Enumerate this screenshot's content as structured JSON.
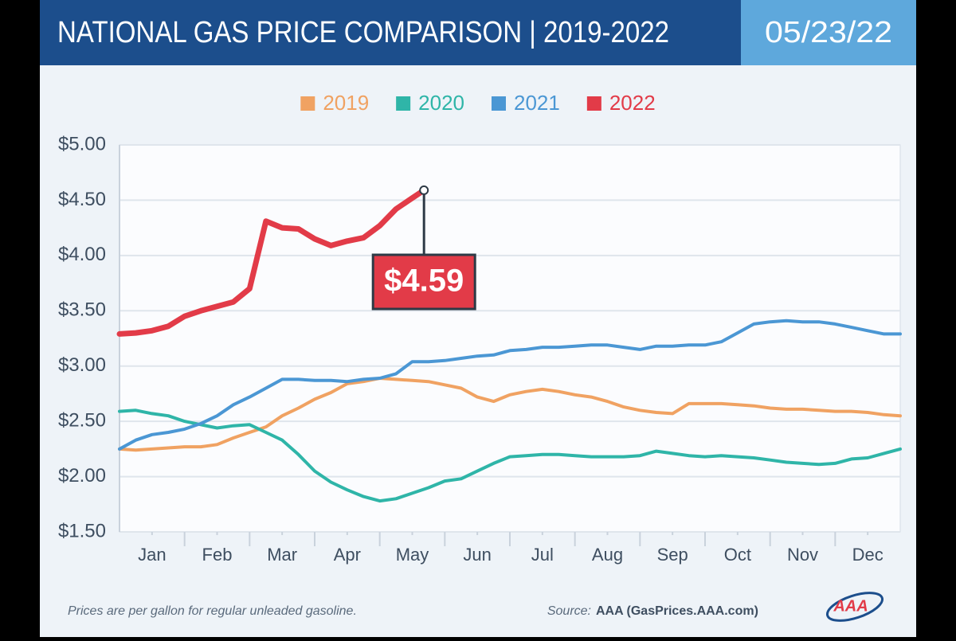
{
  "chart_data": {
    "type": "line",
    "title": "NATIONAL GAS PRICE COMPARISON | 2019-2022",
    "date": "05/23/22",
    "note": "Prices are per gallon for regular unleaded gasoline.",
    "source_label": "Source:",
    "source": "AAA (GasPrices.AAA.com)",
    "logo": "AAA",
    "xlim": [
      0,
      12
    ],
    "xticks": [
      {
        "value": 0.5,
        "label": "Jan"
      },
      {
        "value": 1.5,
        "label": "Feb"
      },
      {
        "value": 2.5,
        "label": "Mar"
      },
      {
        "value": 3.5,
        "label": "Apr"
      },
      {
        "value": 4.5,
        "label": "May"
      },
      {
        "value": 5.5,
        "label": "Jun"
      },
      {
        "value": 6.5,
        "label": "Jul"
      },
      {
        "value": 7.5,
        "label": "Aug"
      },
      {
        "value": 8.5,
        "label": "Sep"
      },
      {
        "value": 9.5,
        "label": "Oct"
      },
      {
        "value": 10.5,
        "label": "Nov"
      },
      {
        "value": 11.5,
        "label": "Dec"
      }
    ],
    "ylim": [
      1.5,
      5
    ],
    "yticks": [
      {
        "value": 1.5,
        "label": "$1.50"
      },
      {
        "value": 2,
        "label": "$2.00"
      },
      {
        "value": 2.5,
        "label": "$2.50"
      },
      {
        "value": 3,
        "label": "$3.00"
      },
      {
        "value": 3.5,
        "label": "$3.50"
      },
      {
        "value": 4,
        "label": "$4.00"
      },
      {
        "value": 4.5,
        "label": "$4.50"
      },
      {
        "value": 5,
        "label": "$5.00"
      }
    ],
    "grid": true,
    "legend": "top",
    "series": [
      {
        "name": "2019",
        "color": "#f0a262",
        "x": [
          0,
          0.25,
          0.5,
          0.75,
          1,
          1.25,
          1.5,
          1.75,
          2,
          2.25,
          2.5,
          2.75,
          3,
          3.25,
          3.5,
          3.75,
          4,
          4.25,
          4.5,
          4.75,
          5,
          5.25,
          5.5,
          5.75,
          6,
          6.25,
          6.5,
          6.75,
          7,
          7.25,
          7.5,
          7.75,
          8,
          8.25,
          8.5,
          8.75,
          9,
          9.25,
          9.5,
          9.75,
          10,
          10.25,
          10.5,
          10.75,
          11,
          11.25,
          11.5,
          11.75,
          12
        ],
        "values": [
          2.25,
          2.24,
          2.25,
          2.26,
          2.27,
          2.27,
          2.29,
          2.35,
          2.4,
          2.45,
          2.55,
          2.62,
          2.7,
          2.76,
          2.84,
          2.86,
          2.89,
          2.88,
          2.87,
          2.86,
          2.83,
          2.8,
          2.72,
          2.68,
          2.74,
          2.77,
          2.79,
          2.77,
          2.74,
          2.72,
          2.68,
          2.63,
          2.6,
          2.58,
          2.57,
          2.66,
          2.66,
          2.66,
          2.65,
          2.64,
          2.62,
          2.61,
          2.61,
          2.6,
          2.59,
          2.59,
          2.58,
          2.56,
          2.55
        ]
      },
      {
        "name": "2020",
        "color": "#2fb5a8",
        "x": [
          0,
          0.25,
          0.5,
          0.75,
          1,
          1.25,
          1.5,
          1.75,
          2,
          2.25,
          2.5,
          2.75,
          3,
          3.25,
          3.5,
          3.75,
          4,
          4.25,
          4.5,
          4.75,
          5,
          5.25,
          5.5,
          5.75,
          6,
          6.25,
          6.5,
          6.75,
          7,
          7.25,
          7.5,
          7.75,
          8,
          8.25,
          8.5,
          8.75,
          9,
          9.25,
          9.5,
          9.75,
          10,
          10.25,
          10.5,
          10.75,
          11,
          11.25,
          11.5,
          11.75,
          12
        ],
        "values": [
          2.59,
          2.6,
          2.57,
          2.55,
          2.5,
          2.47,
          2.44,
          2.46,
          2.47,
          2.4,
          2.33,
          2.2,
          2.05,
          1.95,
          1.88,
          1.82,
          1.78,
          1.8,
          1.85,
          1.9,
          1.96,
          1.98,
          2.05,
          2.12,
          2.18,
          2.19,
          2.2,
          2.2,
          2.19,
          2.18,
          2.18,
          2.18,
          2.19,
          2.23,
          2.21,
          2.19,
          2.18,
          2.19,
          2.18,
          2.17,
          2.15,
          2.13,
          2.12,
          2.11,
          2.12,
          2.16,
          2.17,
          2.21,
          2.25
        ]
      },
      {
        "name": "2021",
        "color": "#4b97d4",
        "x": [
          0,
          0.25,
          0.5,
          0.75,
          1,
          1.25,
          1.5,
          1.75,
          2,
          2.25,
          2.5,
          2.75,
          3,
          3.25,
          3.5,
          3.75,
          4,
          4.25,
          4.5,
          4.75,
          5,
          5.25,
          5.5,
          5.75,
          6,
          6.25,
          6.5,
          6.75,
          7,
          7.25,
          7.5,
          7.75,
          8,
          8.25,
          8.5,
          8.75,
          9,
          9.25,
          9.5,
          9.75,
          10,
          10.25,
          10.5,
          10.75,
          11,
          11.25,
          11.5,
          11.75,
          12
        ],
        "values": [
          2.25,
          2.33,
          2.38,
          2.4,
          2.43,
          2.48,
          2.55,
          2.65,
          2.72,
          2.8,
          2.88,
          2.88,
          2.87,
          2.87,
          2.86,
          2.88,
          2.89,
          2.93,
          3.04,
          3.04,
          3.05,
          3.07,
          3.09,
          3.1,
          3.14,
          3.15,
          3.17,
          3.17,
          3.18,
          3.19,
          3.19,
          3.17,
          3.15,
          3.18,
          3.18,
          3.19,
          3.19,
          3.22,
          3.3,
          3.38,
          3.4,
          3.41,
          3.4,
          3.4,
          3.38,
          3.35,
          3.32,
          3.29,
          3.29
        ]
      },
      {
        "name": "2022",
        "color": "#e23b48",
        "x": [
          0,
          0.25,
          0.5,
          0.75,
          1,
          1.25,
          1.5,
          1.75,
          2,
          2.25,
          2.5,
          2.75,
          3,
          3.25,
          3.5,
          3.75,
          4,
          4.25,
          4.5,
          4.68
        ],
        "values": [
          3.29,
          3.3,
          3.32,
          3.36,
          3.45,
          3.5,
          3.54,
          3.58,
          3.7,
          4.31,
          4.25,
          4.24,
          4.15,
          4.09,
          4.13,
          4.16,
          4.27,
          4.42,
          4.52,
          4.59
        ]
      }
    ],
    "annotations": [
      {
        "label": "$4.59",
        "value": 4.59,
        "x": 4.68
      }
    ]
  }
}
